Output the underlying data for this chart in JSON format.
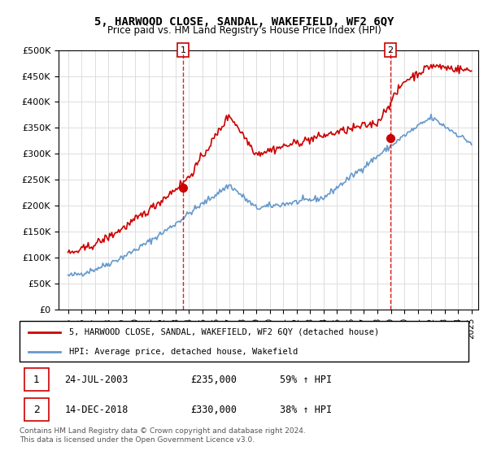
{
  "title": "5, HARWOOD CLOSE, SANDAL, WAKEFIELD, WF2 6QY",
  "subtitle": "Price paid vs. HM Land Registry's House Price Index (HPI)",
  "legend_line1": "5, HARWOOD CLOSE, SANDAL, WAKEFIELD, WF2 6QY (detached house)",
  "legend_line2": "HPI: Average price, detached house, Wakefield",
  "sale1_date": "24-JUL-2003",
  "sale1_price": "£235,000",
  "sale1_hpi": "59% ↑ HPI",
  "sale2_date": "14-DEC-2018",
  "sale2_price": "£330,000",
  "sale2_hpi": "38% ↑ HPI",
  "footer": "Contains HM Land Registry data © Crown copyright and database right 2024.\nThis data is licensed under the Open Government Licence v3.0.",
  "hpi_color": "#6699cc",
  "price_color": "#cc0000",
  "ylim": [
    0,
    500000
  ],
  "yticks": [
    0,
    50000,
    100000,
    150000,
    200000,
    250000,
    300000,
    350000,
    400000,
    450000,
    500000
  ],
  "sale1_year": 2003.55,
  "sale1_value": 235000,
  "sale2_year": 2018.95,
  "sale2_value": 330000
}
